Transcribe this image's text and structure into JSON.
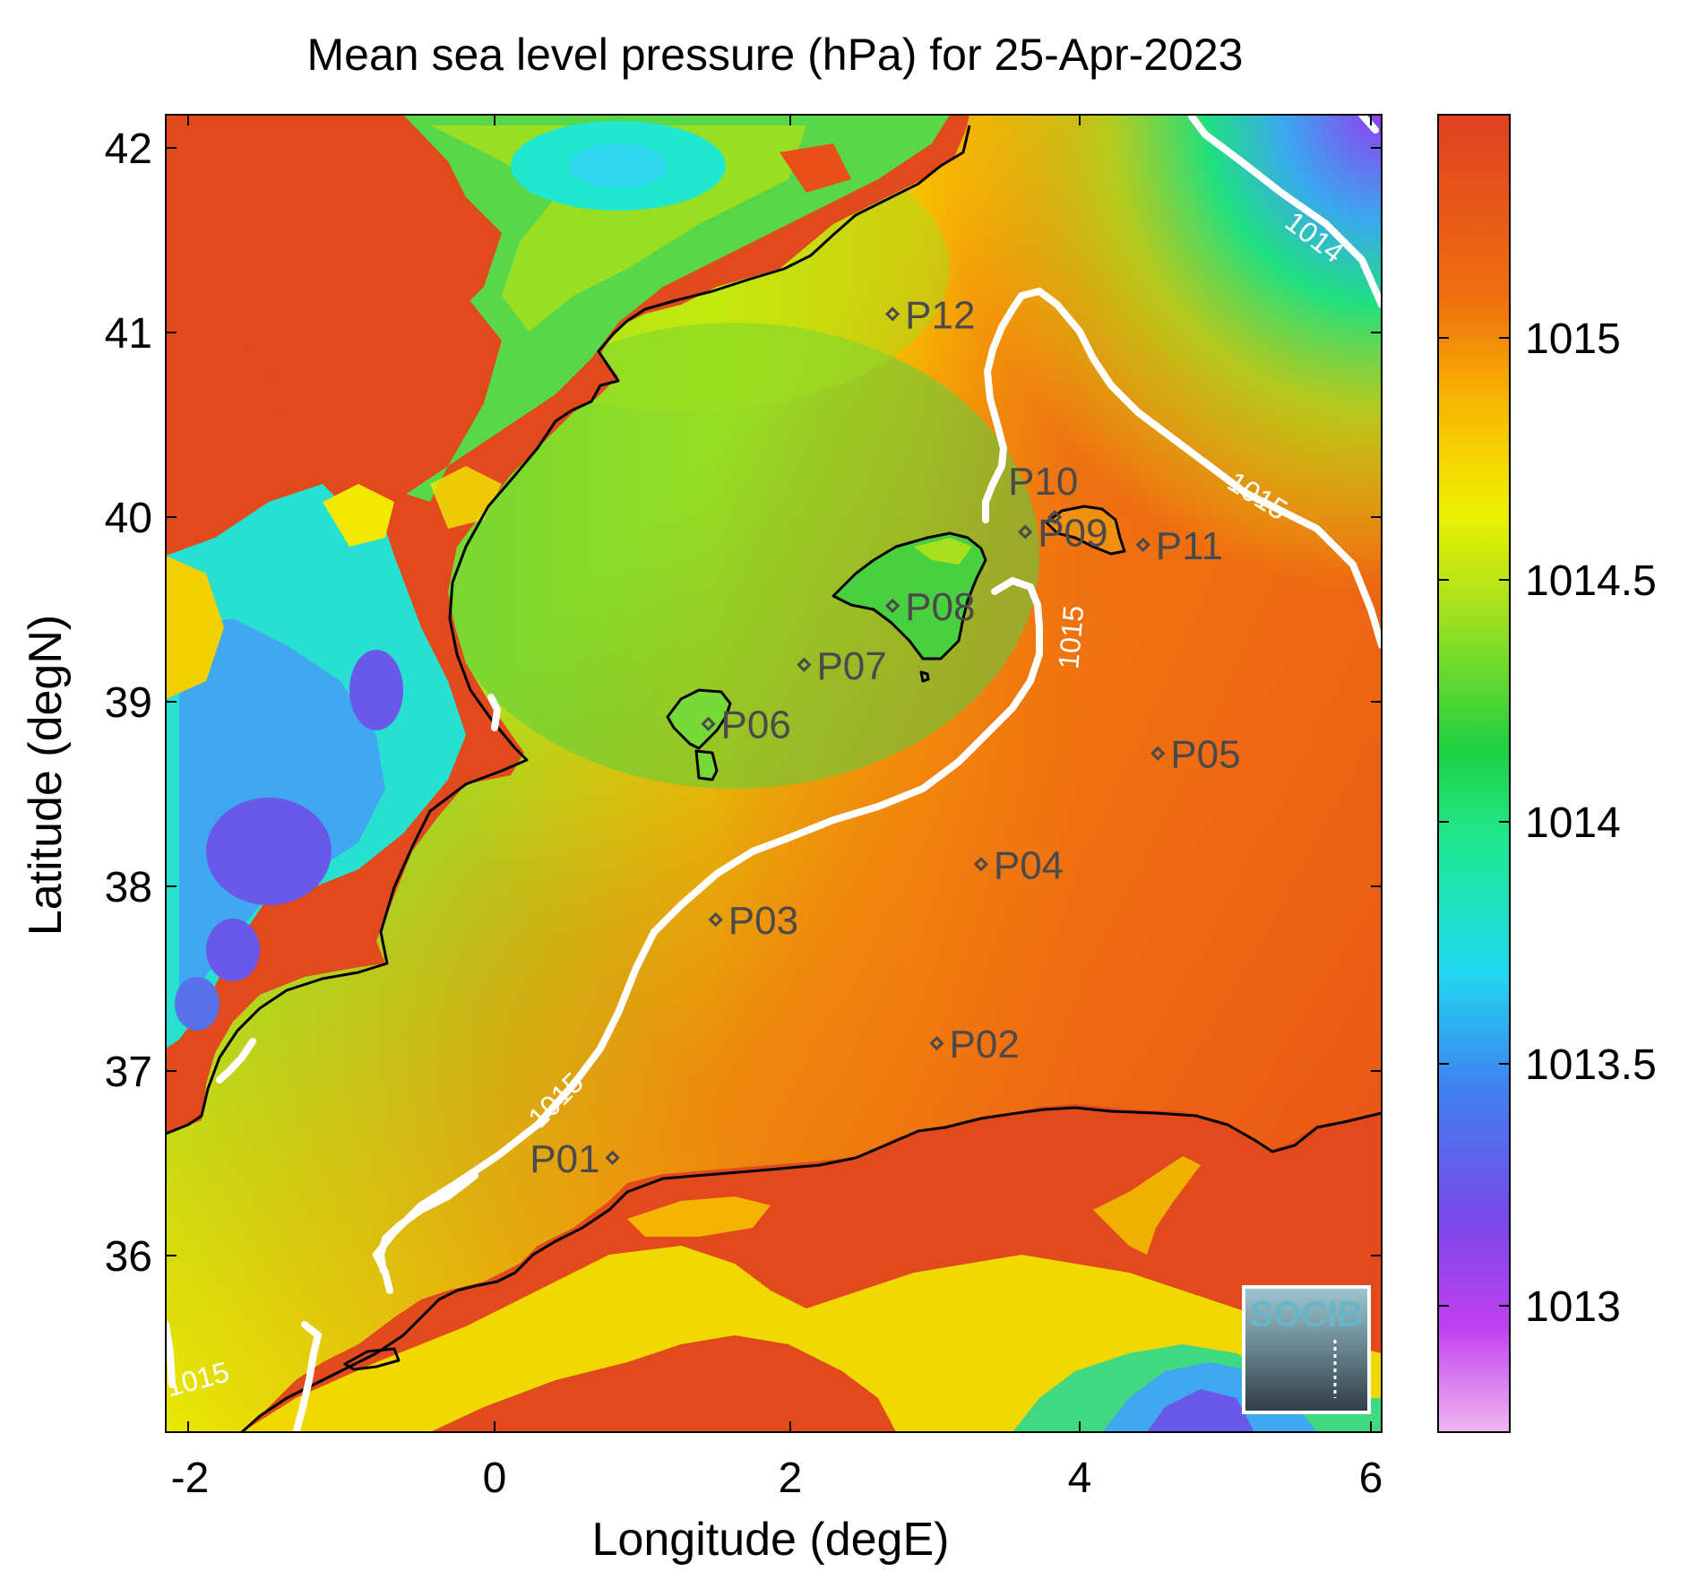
{
  "title": "Mean sea level pressure (hPa) for 25-Apr-2023",
  "xlabel": "Longitude (degE)",
  "ylabel": "Latitude (degN)",
  "x_ticks": [
    "-2",
    "0",
    "2",
    "4",
    "6"
  ],
  "y_ticks": [
    "42",
    "41",
    "40",
    "39",
    "38",
    "37",
    "36"
  ],
  "colorbar": {
    "ticks": [
      "1015",
      "1014.5",
      "1014",
      "1013.5",
      "1013"
    ],
    "colors": [
      "#e8a8e8",
      "#b040f0",
      "#7050e8",
      "#3aa8f0",
      "#20f0f0",
      "#20e080",
      "#20d040",
      "#88e020",
      "#f0f000",
      "#f8c000",
      "#f08000",
      "#e85018",
      "#e04020"
    ]
  },
  "contour_labels": [
    "1014",
    "1015",
    "1015",
    "1015",
    "1015"
  ],
  "stations": [
    {
      "id": "P01",
      "lon": 0.8,
      "lat": 36.53
    },
    {
      "id": "P02",
      "lon": 3.0,
      "lat": 37.15
    },
    {
      "id": "P03",
      "lon": 1.5,
      "lat": 37.82
    },
    {
      "id": "P04",
      "lon": 3.3,
      "lat": 38.12
    },
    {
      "id": "P05",
      "lon": 4.5,
      "lat": 38.72
    },
    {
      "id": "P06",
      "lon": 1.45,
      "lat": 38.88
    },
    {
      "id": "P07",
      "lon": 2.1,
      "lat": 39.2
    },
    {
      "id": "P08",
      "lon": 2.7,
      "lat": 39.52
    },
    {
      "id": "P09",
      "lon": 3.6,
      "lat": 39.92
    },
    {
      "id": "P10",
      "lon": 3.8,
      "lat": 40.0
    },
    {
      "id": "P11",
      "lon": 4.4,
      "lat": 39.85
    },
    {
      "id": "P12",
      "lon": 2.7,
      "lat": 41.1
    }
  ],
  "logo_text": "SOCIB"
}
